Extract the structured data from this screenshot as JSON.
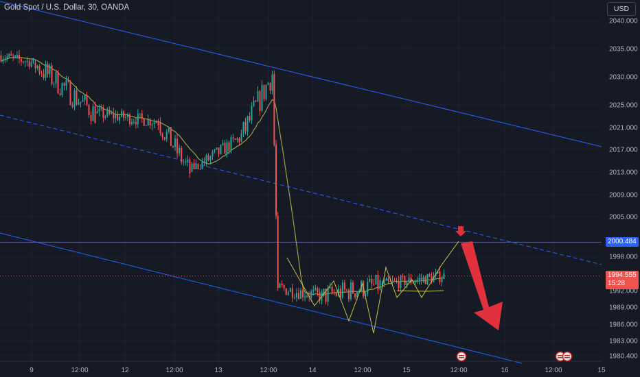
{
  "header": {
    "title": "Gold Spot / U.S. Dollar, 30, OANDA",
    "currency": "USD"
  },
  "colors": {
    "background": "#161a25",
    "up": "#26a69a",
    "down": "#ef5350",
    "channel": "#2962ff",
    "moving_average": "#9aa04a",
    "pattern": "#c4c24a",
    "arrow": "#e0313c",
    "level_line": "#2962ff"
  },
  "chart_data": {
    "type": "candlestick",
    "symbol": "Gold Spot / U.S. Dollar",
    "interval": "30",
    "source": "OANDA",
    "y_ticks": [
      2040.0,
      2035.0,
      2030.0,
      2025.0,
      2021.0,
      2017.0,
      2013.0,
      2009.0,
      2005.0,
      1998.0,
      1992.0,
      1989.0,
      1986.0,
      1983.0,
      1980.4
    ],
    "x_ticks": [
      "9",
      "12:00",
      "12",
      "12:00",
      "13",
      "12:00",
      "14",
      "12:00",
      "15",
      "12:00",
      "16",
      "12:00",
      "15"
    ],
    "horizontal_level": {
      "value": 2000.484,
      "label": "2000.484"
    },
    "last_price": {
      "value": 1994.555,
      "label": "1994.555",
      "countdown": "15:28"
    },
    "session_segments": [
      {
        "session": "9",
        "trend": "sideways",
        "start": 2033.8,
        "end": 2032.5,
        "low": 2031.0,
        "high": 2036.5
      },
      {
        "session": "9-12:00",
        "trend": "down",
        "start": 2032.5,
        "end": 2023.5,
        "low": 2021.0,
        "high": 2033.5
      },
      {
        "session": "12",
        "trend": "choppy",
        "start": 2023.5,
        "end": 2022.0,
        "low": 2020.0,
        "high": 2026.5
      },
      {
        "session": "12-12:00",
        "trend": "down",
        "start": 2022.0,
        "end": 2013.0,
        "low": 2012.0,
        "high": 2024.0
      },
      {
        "session": "12-12:00 to 13",
        "trend": "up",
        "start": 2013.0,
        "end": 2019.0,
        "low": 2013.5,
        "high": 2021.0
      },
      {
        "session": "13-12:00",
        "trend": "up",
        "start": 2018.5,
        "end": 2030.5,
        "low": 2017.5,
        "high": 2031.5
      },
      {
        "session": "13-12:00 drop",
        "trend": "crash",
        "start": 2030.5,
        "end": 1992.5,
        "low": 1990.5,
        "high": 2031.5
      },
      {
        "session": "14",
        "trend": "range",
        "start": 1992.5,
        "end": 1991.0,
        "low": 1988.0,
        "high": 1995.5
      },
      {
        "session": "14-12:00",
        "trend": "range",
        "start": 1991.0,
        "end": 1993.0,
        "low": 1984.5,
        "high": 1995.5
      },
      {
        "session": "15",
        "trend": "range-up",
        "start": 1993.0,
        "end": 1994.555,
        "low": 1990.5,
        "high": 1996.5
      }
    ],
    "annotations": {
      "descending_channel": true,
      "channel_midline": "dashed",
      "projected_move": "up to 2000.484 then down",
      "event_icons": [
        "15-12:00",
        "16-12:00"
      ]
    }
  }
}
